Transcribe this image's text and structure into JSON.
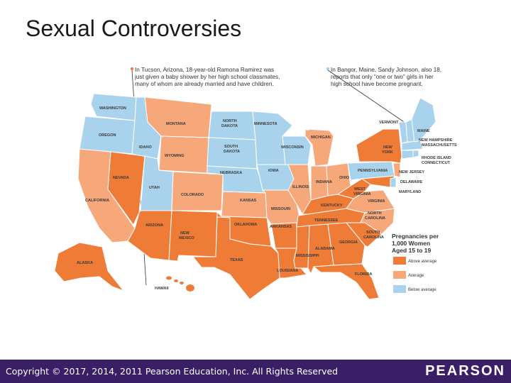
{
  "slide": {
    "title": "Sexual Controversies"
  },
  "colors": {
    "above": "#ee7b36",
    "average": "#f7a87a",
    "below": "#a9d3ec",
    "water": "#ffffff",
    "footer": "#3b1f66"
  },
  "map": {
    "callout_left": [
      "In Tucson, Arizona, 18-year-old Ramona Ramirez was",
      "just given a baby shower by her high school classmates,",
      "many of whom are already married and have children."
    ],
    "callout_right": [
      "In Bangor, Maine, Sandy Johnson, also 18,",
      "reports that only “one or two” girls in her",
      "high school have become pregnant."
    ],
    "states": {
      "washington": "WASHINGTON",
      "oregon": "OREGON",
      "california": "CALIFORNIA",
      "nevada": "NEVADA",
      "idaho": "IDAHO",
      "montana": "MONTANA",
      "wyoming": "WYOMING",
      "utah": "UTAH",
      "arizona": "ARIZONA",
      "colorado": "COLORADO",
      "new_mexico_1": "NEW",
      "new_mexico_2": "MEXICO",
      "north_dakota_1": "NORTH",
      "north_dakota_2": "DAKOTA",
      "south_dakota_1": "SOUTH",
      "south_dakota_2": "DAKOTA",
      "nebraska": "NEBRASKA",
      "kansas": "KANSAS",
      "oklahoma": "OKLAHOMA",
      "texas": "TEXAS",
      "minnesota": "MINNESOTA",
      "iowa": "IOWA",
      "missouri": "MISSOURI",
      "arkansas": "ARKANSAS",
      "louisiana": "LOUISIANA",
      "wisconsin": "WISCONSIN",
      "illinois": "ILLINOIS",
      "michigan": "MICHIGAN",
      "indiana": "INDIANA",
      "ohio": "OHIO",
      "kentucky": "KENTUCKY",
      "tennessee": "TENNESSEE",
      "mississippi": "MISSISSIPPI",
      "alabama": "ALABAMA",
      "georgia": "GEORGIA",
      "florida": "FLORIDA",
      "south_carolina_1": "SOUTH",
      "south_carolina_2": "CAROLINA",
      "north_carolina_1": "NORTH",
      "north_carolina_2": "CAROLINA",
      "virginia": "VIRGINIA",
      "west_virginia_1": "WEST",
      "west_virginia_2": "VIRGINIA",
      "pennsylvania": "PENNSYLVANIA",
      "new_york_1": "NEW",
      "new_york_2": "YORK",
      "vermont": "VERMONT",
      "maine": "MAINE",
      "new_hampshire": "NEW HAMPSHIRE",
      "massachusetts": "MASSACHUSETTS",
      "rhode_island": "RHODE ISLAND",
      "connecticut": "CONNECTICUT",
      "new_jersey": "NEW JERSEY",
      "delaware": "DELAWARE",
      "maryland": "MARYLAND",
      "alaska": "ALASKA",
      "hawaii": "HAWAII"
    },
    "legend": {
      "title_1": "Pregnancies per",
      "title_2": "1,000 Women",
      "title_3": "Aged 15 to 19",
      "above": "Above average",
      "average": "Average",
      "below": "Below average"
    }
  },
  "footer": {
    "copyright": "Copyright © 2017, 2014, 2011 Pearson Education, Inc. All Rights Reserved",
    "brand": "PEARSON"
  }
}
